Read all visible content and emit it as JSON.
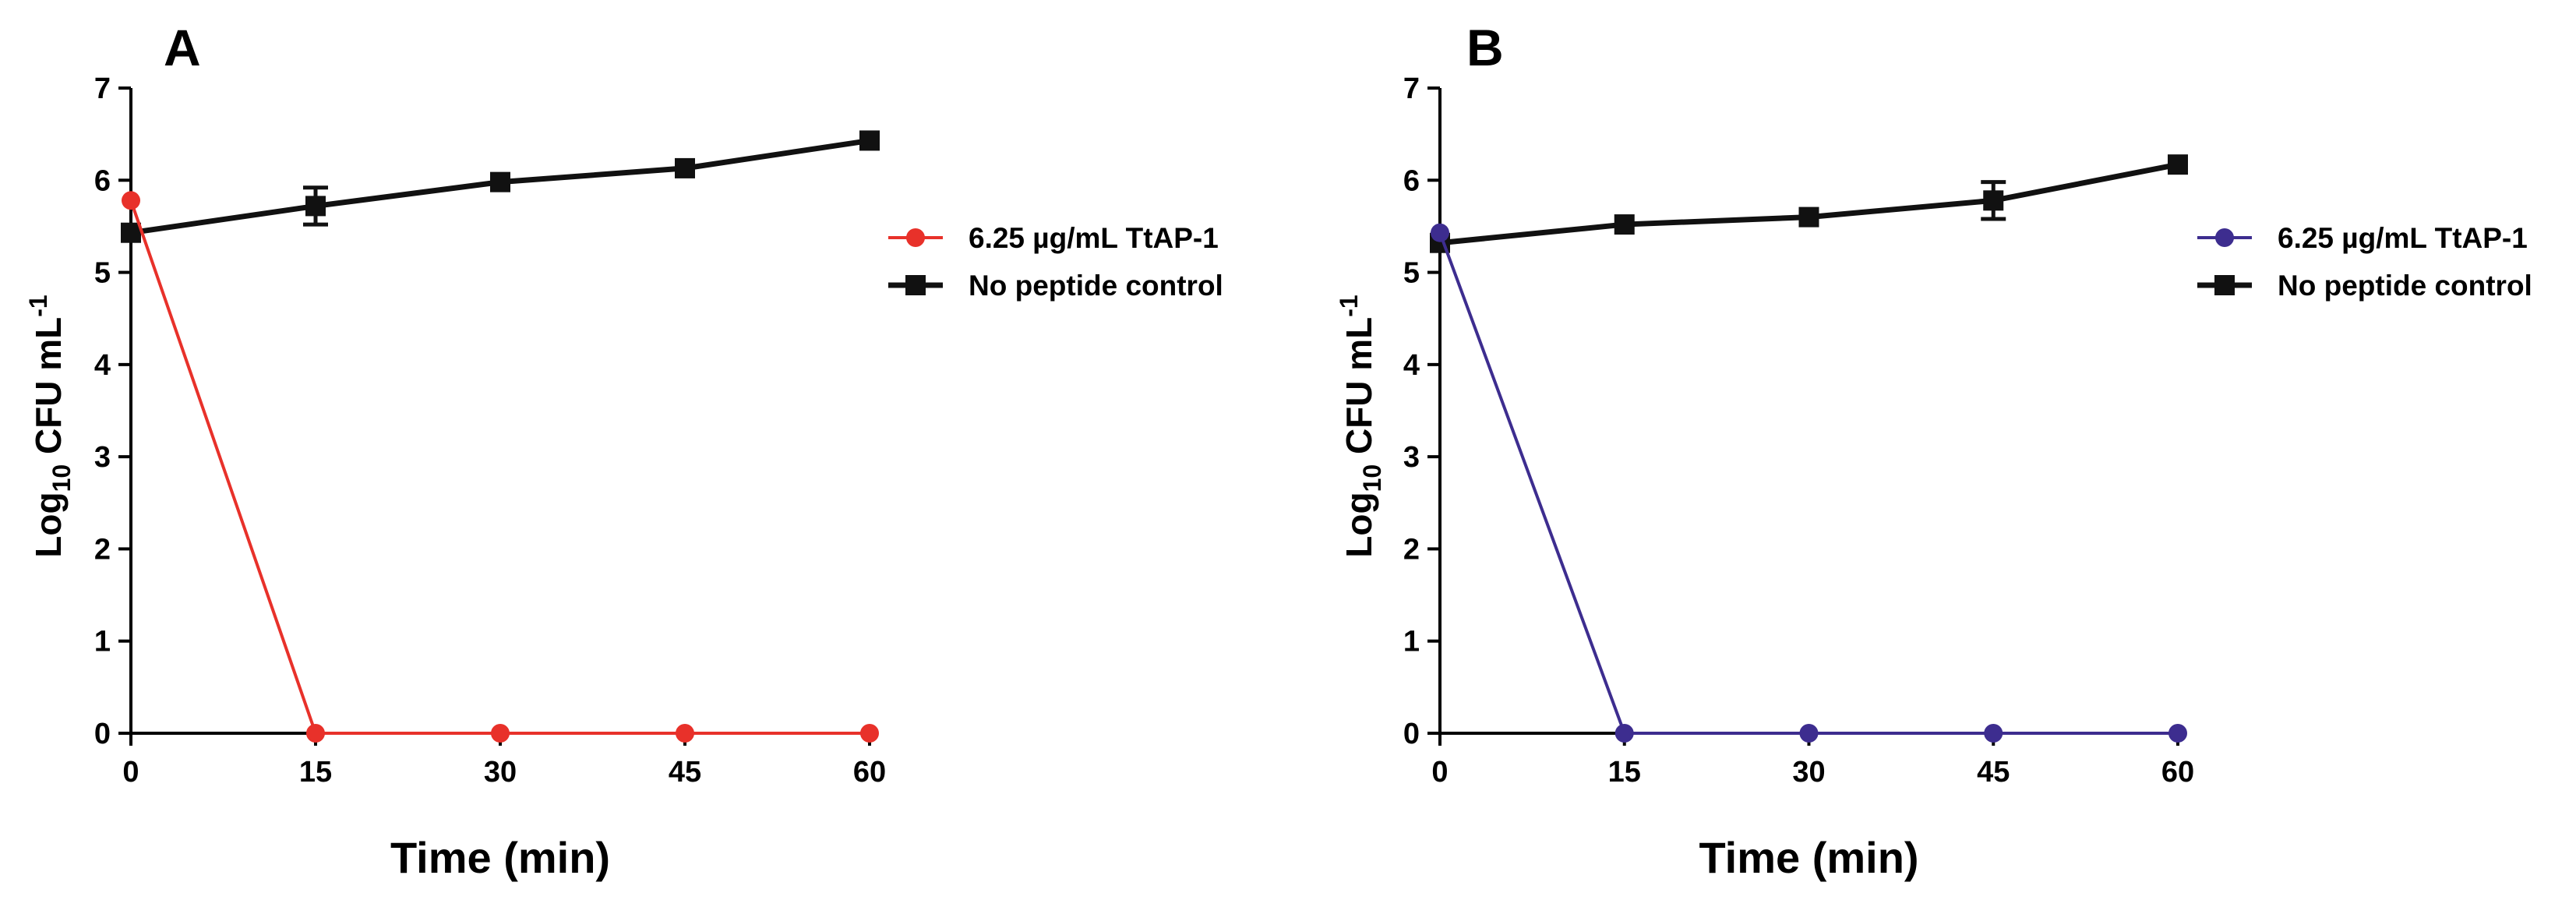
{
  "chart_data": [
    {
      "type": "line",
      "panel_label": "A",
      "title": "",
      "xlabel": "Time (min)",
      "ylabel": {
        "main": "Log",
        "sub": "10",
        "rest": " CFU mL",
        "sup": "-1"
      },
      "x": [
        0,
        15,
        30,
        45,
        60
      ],
      "xticks": [
        "0",
        "15",
        "30",
        "45",
        "60"
      ],
      "yticks": [
        "0",
        "1",
        "2",
        "3",
        "4",
        "5",
        "6",
        "7"
      ],
      "xlim": [
        0,
        60
      ],
      "ylim": [
        0,
        7
      ],
      "legend_position": "right",
      "series": [
        {
          "name": "6.25 µg/mL TtAP-1",
          "marker": "circle",
          "color": "#e8312a",
          "values": [
            5.78,
            0,
            0,
            0,
            0
          ],
          "errors": [
            0,
            0,
            0,
            0,
            0
          ]
        },
        {
          "name": "No peptide control",
          "marker": "square",
          "color": "#111111",
          "values": [
            5.43,
            5.72,
            5.98,
            6.13,
            6.43
          ],
          "errors": [
            0.05,
            0.2,
            0.06,
            0.05,
            0.05
          ]
        }
      ]
    },
    {
      "type": "line",
      "panel_label": "B",
      "title": "",
      "xlabel": "Time (min)",
      "ylabel": {
        "main": "Log",
        "sub": "10",
        "rest": " CFU mL",
        "sup": "-1"
      },
      "x": [
        0,
        15,
        30,
        45,
        60
      ],
      "xticks": [
        "0",
        "15",
        "30",
        "45",
        "60"
      ],
      "yticks": [
        "0",
        "1",
        "2",
        "3",
        "4",
        "5",
        "6",
        "7"
      ],
      "xlim": [
        0,
        60
      ],
      "ylim": [
        0,
        7
      ],
      "legend_position": "right",
      "series": [
        {
          "name": "6.25 µg/mL TtAP-1",
          "marker": "circle",
          "color": "#3d2d8f",
          "values": [
            5.43,
            0,
            0,
            0,
            0
          ],
          "errors": [
            0,
            0,
            0,
            0,
            0
          ]
        },
        {
          "name": "No peptide control",
          "marker": "square",
          "color": "#111111",
          "values": [
            5.32,
            5.52,
            5.6,
            5.78,
            6.17
          ],
          "errors": [
            0.05,
            0.06,
            0.06,
            0.2,
            0.05
          ]
        }
      ]
    }
  ]
}
